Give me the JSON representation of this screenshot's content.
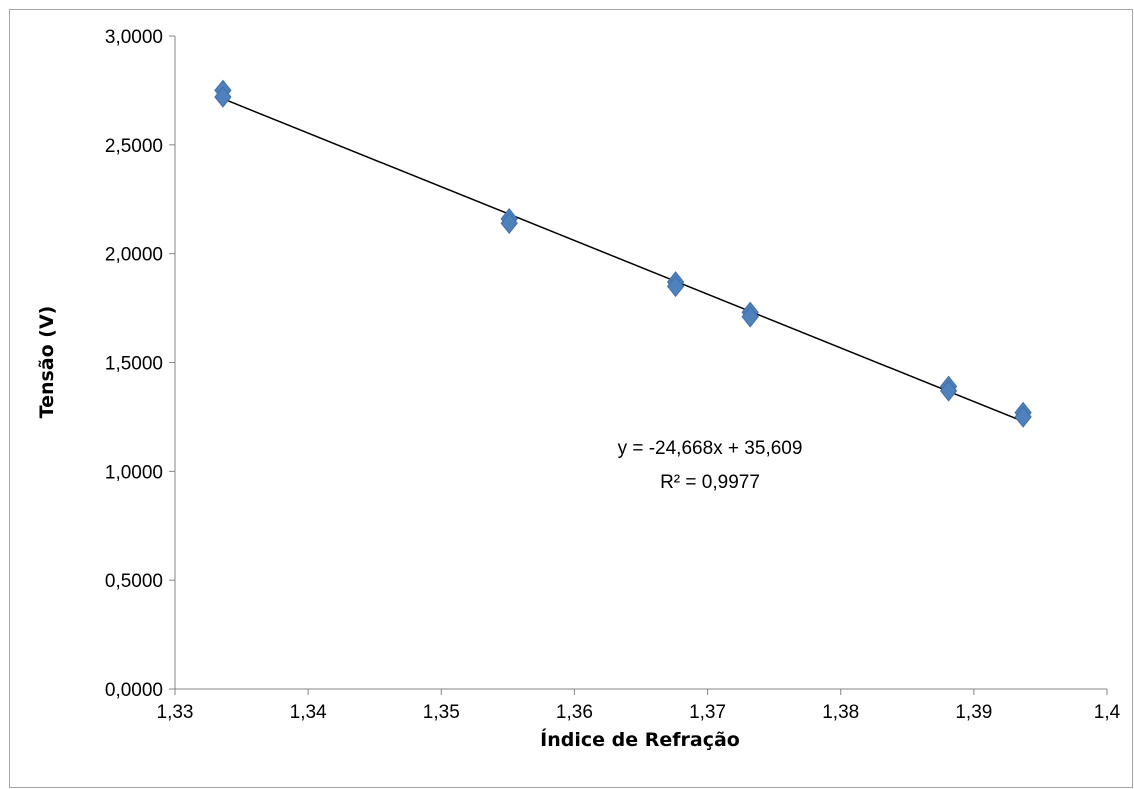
{
  "chart_data": {
    "type": "scatter",
    "title": "",
    "xlabel": "Índice de Refração",
    "ylabel": "Tensão (V)",
    "xlim": [
      1.33,
      1.4
    ],
    "ylim": [
      0,
      3
    ],
    "x_ticks": [
      "1,33",
      "1,34",
      "1,35",
      "1,36",
      "1,37",
      "1,38",
      "1,39",
      "1,4"
    ],
    "y_ticks": [
      "0,0000",
      "0,5000",
      "1,0000",
      "1,5000",
      "2,0000",
      "2,5000",
      "3,0000"
    ],
    "grid": false,
    "legend": "none",
    "series": [
      {
        "marker": "diamond",
        "color": "#4f81bd",
        "points": [
          {
            "x": 1.3336,
            "y": 2.75
          },
          {
            "x": 1.3336,
            "y": 2.72
          },
          {
            "x": 1.3551,
            "y": 2.16
          },
          {
            "x": 1.3551,
            "y": 2.14
          },
          {
            "x": 1.3676,
            "y": 1.87
          },
          {
            "x": 1.3676,
            "y": 1.85
          },
          {
            "x": 1.3732,
            "y": 1.73
          },
          {
            "x": 1.3732,
            "y": 1.71
          },
          {
            "x": 1.3881,
            "y": 1.39
          },
          {
            "x": 1.3881,
            "y": 1.37
          },
          {
            "x": 1.3937,
            "y": 1.27
          },
          {
            "x": 1.3937,
            "y": 1.25
          }
        ]
      }
    ],
    "trendline": {
      "type": "linear",
      "slope": -24.668,
      "intercept": 35.609,
      "x_range": [
        1.3336,
        1.3937
      ],
      "color": "#000000"
    },
    "annotations": {
      "equation": "y = -24,668x + 35,609",
      "r_squared": "R² = 0,9977"
    }
  }
}
